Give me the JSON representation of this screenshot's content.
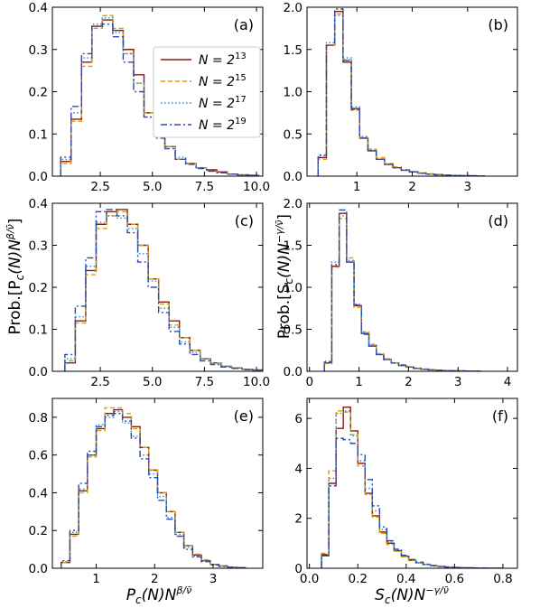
{
  "legend": {
    "entries": [
      {
        "base": "N = 2",
        "exp": "13",
        "color": "#8B1A0A",
        "dash": ""
      },
      {
        "base": "N = 2",
        "exp": "15",
        "color": "#D9A000",
        "dash": "5,3"
      },
      {
        "base": "N = 2",
        "exp": "17",
        "color": "#2E86D8",
        "dash": "1.5,2.5"
      },
      {
        "base": "N = 2",
        "exp": "19",
        "color": "#2A4AB0",
        "dash": "7,3,2,3"
      }
    ]
  },
  "axis_labels": {
    "ylabel_left": {
      "text": "Prob.[P",
      "sub": "c",
      "mid": "(N)N",
      "sup": "β/ν̄",
      "end": "]"
    },
    "ylabel_right": {
      "text": "Prob.[S",
      "sub": "c",
      "mid": "(N)N",
      "sup": "−γ/ν̄",
      "end": "]"
    },
    "xlabel_left": {
      "text": "P",
      "sub": "c",
      "mid": "(N)N",
      "sup": "β/ν̄"
    },
    "xlabel_right": {
      "text": "S",
      "sub": "c",
      "mid": "(N)N",
      "sup": "−γ/ν̄"
    }
  },
  "chart_data": [
    {
      "type": "histogram-step",
      "panel": "(a)",
      "xlim": [
        0.2,
        10.3
      ],
      "ylim": [
        0,
        0.4
      ],
      "xticks": [
        2.5,
        5.0,
        7.5,
        10.0
      ],
      "xtick_labels": [
        "2.5",
        "5.0",
        "7.5",
        "10.0"
      ],
      "yticks": [
        0,
        0.1,
        0.2,
        0.3,
        0.4
      ],
      "ytick_labels": [
        "0.0",
        "0.1",
        "0.2",
        "0.3",
        "0.4"
      ],
      "bin_start": 0.6,
      "bin_width": 0.5,
      "series": [
        {
          "name": "N=2^13",
          "values": [
            0.035,
            0.135,
            0.27,
            0.355,
            0.37,
            0.345,
            0.3,
            0.24,
            0.15,
            0.1,
            0.07,
            0.04,
            0.03,
            0.02,
            0.015,
            0.01,
            0.005,
            0.003,
            0.002
          ]
        },
        {
          "name": "N=2^15",
          "values": [
            0.03,
            0.13,
            0.26,
            0.35,
            0.38,
            0.35,
            0.29,
            0.22,
            0.15,
            0.1,
            0.07,
            0.04,
            0.03,
            0.02,
            0.012,
            0.008,
            0.005,
            0.003,
            0.002
          ]
        },
        {
          "name": "N=2^17",
          "values": [
            0.04,
            0.15,
            0.28,
            0.36,
            0.375,
            0.34,
            0.29,
            0.22,
            0.14,
            0.1,
            0.07,
            0.045,
            0.03,
            0.02,
            0.012,
            0.008,
            0.005,
            0.003,
            0.002
          ]
        },
        {
          "name": "N=2^19",
          "values": [
            0.045,
            0.165,
            0.29,
            0.355,
            0.36,
            0.33,
            0.27,
            0.2,
            0.14,
            0.09,
            0.065,
            0.04,
            0.028,
            0.018,
            0.012,
            0.008,
            0.005,
            0.003,
            0.002
          ]
        }
      ]
    },
    {
      "type": "histogram-step",
      "panel": "(b)",
      "xlim": [
        0.1,
        3.9
      ],
      "ylim": [
        0,
        2.0
      ],
      "xticks": [
        1,
        2,
        3
      ],
      "xtick_labels": [
        "1",
        "2",
        "3"
      ],
      "yticks": [
        0,
        0.5,
        1.0,
        1.5,
        2.0
      ],
      "ytick_labels": [
        "0.0",
        "0.5",
        "1.0",
        "1.5",
        "2.0"
      ],
      "bin_start": 0.3,
      "bin_width": 0.15,
      "series": [
        {
          "name": "N=2^13",
          "values": [
            0.22,
            1.55,
            1.95,
            1.35,
            0.8,
            0.45,
            0.3,
            0.2,
            0.14,
            0.1,
            0.07,
            0.05,
            0.035,
            0.025,
            0.018,
            0.012,
            0.008,
            0.006,
            0.004,
            0.003
          ]
        },
        {
          "name": "N=2^15",
          "values": [
            0.2,
            1.55,
            1.92,
            1.38,
            0.78,
            0.46,
            0.32,
            0.22,
            0.15,
            0.11,
            0.08,
            0.055,
            0.04,
            0.028,
            0.02,
            0.014,
            0.01,
            0.007,
            0.005,
            0.003
          ]
        },
        {
          "name": "N=2^17",
          "values": [
            0.24,
            1.58,
            1.9,
            1.4,
            0.82,
            0.47,
            0.31,
            0.2,
            0.14,
            0.1,
            0.07,
            0.05,
            0.036,
            0.025,
            0.017,
            0.012,
            0.008,
            0.006,
            0.004,
            0.003
          ]
        },
        {
          "name": "N=2^19",
          "values": [
            0.25,
            1.55,
            1.98,
            1.37,
            0.79,
            0.45,
            0.3,
            0.2,
            0.14,
            0.1,
            0.07,
            0.05,
            0.035,
            0.024,
            0.016,
            0.011,
            0.008,
            0.005,
            0.004,
            0.003
          ]
        }
      ]
    },
    {
      "type": "histogram-step",
      "panel": "(c)",
      "xlim": [
        0.2,
        10.3
      ],
      "ylim": [
        0,
        0.4
      ],
      "xticks": [
        2.5,
        5.0,
        7.5,
        10.0
      ],
      "xtick_labels": [
        "2.5",
        "5.0",
        "7.5",
        "10.0"
      ],
      "yticks": [
        0,
        0.1,
        0.2,
        0.3,
        0.4
      ],
      "ytick_labels": [
        "0.0",
        "0.1",
        "0.2",
        "0.3",
        "0.4"
      ],
      "bin_start": 0.8,
      "bin_width": 0.5,
      "series": [
        {
          "name": "N=2^13",
          "values": [
            0.02,
            0.12,
            0.24,
            0.35,
            0.38,
            0.385,
            0.35,
            0.3,
            0.22,
            0.165,
            0.12,
            0.08,
            0.05,
            0.03,
            0.02,
            0.012,
            0.008,
            0.005,
            0.003
          ]
        },
        {
          "name": "N=2^15",
          "values": [
            0.025,
            0.115,
            0.23,
            0.34,
            0.37,
            0.38,
            0.35,
            0.3,
            0.22,
            0.16,
            0.11,
            0.08,
            0.05,
            0.03,
            0.02,
            0.012,
            0.008,
            0.005,
            0.003
          ]
        },
        {
          "name": "N=2^17",
          "values": [
            0.03,
            0.13,
            0.25,
            0.355,
            0.37,
            0.365,
            0.34,
            0.28,
            0.215,
            0.15,
            0.105,
            0.07,
            0.045,
            0.03,
            0.018,
            0.012,
            0.008,
            0.005,
            0.003
          ]
        },
        {
          "name": "N=2^19",
          "values": [
            0.04,
            0.155,
            0.27,
            0.38,
            0.385,
            0.37,
            0.33,
            0.26,
            0.2,
            0.14,
            0.095,
            0.065,
            0.04,
            0.025,
            0.016,
            0.01,
            0.007,
            0.004,
            0.003
          ]
        }
      ]
    },
    {
      "type": "histogram-step",
      "panel": "(d)",
      "xlim": [
        -0.05,
        4.2
      ],
      "ylim": [
        0,
        2.0
      ],
      "xticks": [
        0,
        1,
        2,
        3,
        4
      ],
      "xtick_labels": [
        "0",
        "1",
        "2",
        "3",
        "4"
      ],
      "yticks": [
        0,
        0.5,
        1.0,
        1.5,
        2.0
      ],
      "ytick_labels": [
        "0.0",
        "0.5",
        "1.0",
        "1.5",
        "2.0"
      ],
      "bin_start": 0.3,
      "bin_width": 0.15,
      "series": [
        {
          "name": "N=2^13",
          "values": [
            0.1,
            1.25,
            1.88,
            1.3,
            0.78,
            0.45,
            0.3,
            0.2,
            0.14,
            0.1,
            0.07,
            0.05,
            0.035,
            0.025,
            0.018,
            0.012,
            0.008,
            0.006,
            0.004,
            0.003,
            0.002
          ]
        },
        {
          "name": "N=2^15",
          "values": [
            0.09,
            1.24,
            1.82,
            1.35,
            0.76,
            0.47,
            0.32,
            0.21,
            0.15,
            0.1,
            0.08,
            0.055,
            0.04,
            0.028,
            0.02,
            0.014,
            0.01,
            0.007,
            0.005,
            0.003,
            0.002
          ]
        },
        {
          "name": "N=2^17",
          "values": [
            0.12,
            1.3,
            1.85,
            1.32,
            0.8,
            0.46,
            0.31,
            0.2,
            0.14,
            0.1,
            0.07,
            0.05,
            0.036,
            0.025,
            0.017,
            0.012,
            0.008,
            0.006,
            0.004,
            0.003,
            0.002
          ]
        },
        {
          "name": "N=2^19",
          "values": [
            0.11,
            1.27,
            1.92,
            1.3,
            0.79,
            0.44,
            0.3,
            0.2,
            0.14,
            0.1,
            0.07,
            0.05,
            0.035,
            0.024,
            0.016,
            0.011,
            0.008,
            0.005,
            0.004,
            0.003,
            0.002
          ]
        }
      ]
    },
    {
      "type": "histogram-step",
      "panel": "(e)",
      "xlim": [
        0.25,
        3.85
      ],
      "ylim": [
        0,
        0.9
      ],
      "xticks": [
        1,
        2,
        3
      ],
      "xtick_labels": [
        "1",
        "2",
        "3"
      ],
      "yticks": [
        0,
        0.2,
        0.4,
        0.6,
        0.8
      ],
      "ytick_labels": [
        "0.0",
        "0.2",
        "0.4",
        "0.6",
        "0.8"
      ],
      "bin_start": 0.4,
      "bin_width": 0.15,
      "series": [
        {
          "name": "N=2^13",
          "values": [
            0.03,
            0.18,
            0.41,
            0.6,
            0.74,
            0.82,
            0.84,
            0.8,
            0.75,
            0.64,
            0.52,
            0.4,
            0.3,
            0.19,
            0.12,
            0.07,
            0.04,
            0.02,
            0.012,
            0.006,
            0.003
          ]
        },
        {
          "name": "N=2^15",
          "values": [
            0.03,
            0.17,
            0.4,
            0.59,
            0.73,
            0.85,
            0.85,
            0.82,
            0.74,
            0.64,
            0.52,
            0.4,
            0.3,
            0.19,
            0.12,
            0.075,
            0.045,
            0.02,
            0.012,
            0.006,
            0.003
          ]
        },
        {
          "name": "N=2^17",
          "values": [
            0.035,
            0.19,
            0.42,
            0.6,
            0.76,
            0.8,
            0.83,
            0.77,
            0.7,
            0.6,
            0.5,
            0.38,
            0.27,
            0.18,
            0.11,
            0.065,
            0.04,
            0.02,
            0.011,
            0.006,
            0.003
          ]
        },
        {
          "name": "N=2^19",
          "values": [
            0.04,
            0.2,
            0.45,
            0.62,
            0.75,
            0.81,
            0.82,
            0.78,
            0.69,
            0.58,
            0.48,
            0.36,
            0.26,
            0.17,
            0.1,
            0.06,
            0.035,
            0.018,
            0.01,
            0.005,
            0.002
          ]
        }
      ]
    },
    {
      "type": "histogram-step",
      "panel": "(f)",
      "xlim": [
        -0.01,
        0.86
      ],
      "ylim": [
        0,
        6.8
      ],
      "xticks": [
        0,
        0.2,
        0.4,
        0.6,
        0.8
      ],
      "xtick_labels": [
        "0.0",
        "0.2",
        "0.4",
        "0.6",
        "0.8"
      ],
      "yticks": [
        0,
        2,
        4,
        6
      ],
      "ytick_labels": [
        "0",
        "2",
        "4",
        "6"
      ],
      "bin_start": 0.05,
      "bin_width": 0.03,
      "series": [
        {
          "name": "N=2^13",
          "values": [
            0.5,
            3.4,
            5.6,
            6.45,
            5.5,
            4.2,
            3.0,
            2.1,
            1.45,
            1.0,
            0.7,
            0.48,
            0.32,
            0.22,
            0.15,
            0.1,
            0.07,
            0.045,
            0.03,
            0.02,
            0.014,
            0.01,
            0.006,
            0.004,
            0.003
          ]
        },
        {
          "name": "N=2^15",
          "values": [
            0.6,
            3.9,
            6.3,
            6.25,
            5.35,
            4.1,
            2.95,
            2.05,
            1.4,
            0.95,
            0.68,
            0.46,
            0.31,
            0.21,
            0.14,
            0.1,
            0.065,
            0.042,
            0.028,
            0.019,
            0.013,
            0.009,
            0.006,
            0.004,
            0.003
          ]
        },
        {
          "name": "N=2^17",
          "values": [
            0.55,
            3.6,
            6.2,
            6.3,
            5.3,
            4.3,
            3.2,
            2.3,
            1.55,
            1.05,
            0.75,
            0.5,
            0.34,
            0.23,
            0.16,
            0.11,
            0.075,
            0.05,
            0.033,
            0.022,
            0.015,
            0.01,
            0.007,
            0.005,
            0.003
          ]
        },
        {
          "name": "N=2^19",
          "values": [
            0.55,
            3.3,
            5.2,
            5.15,
            5.0,
            4.55,
            3.55,
            2.5,
            1.65,
            1.1,
            0.76,
            0.52,
            0.35,
            0.24,
            0.16,
            0.11,
            0.075,
            0.05,
            0.033,
            0.022,
            0.015,
            0.01,
            0.007,
            0.005,
            0.003
          ]
        }
      ]
    }
  ]
}
